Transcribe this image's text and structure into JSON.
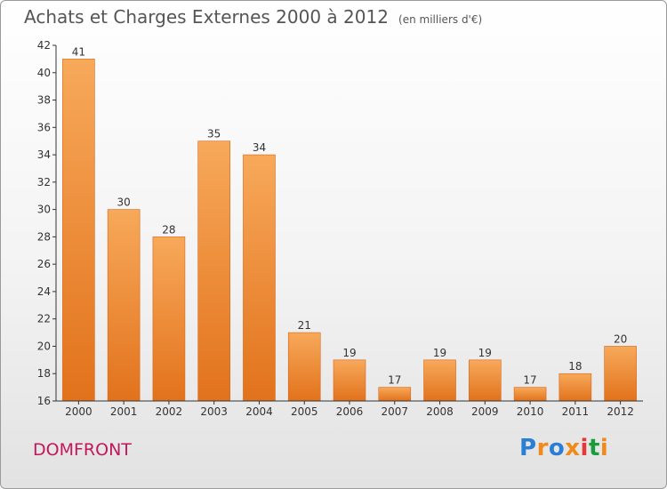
{
  "title": "Achats et Charges Externes 2000 à 2012",
  "unit": "(en milliers d'€)",
  "commune": "DOMFRONT",
  "logo": "Proxiti",
  "colors": {
    "bar_top": "#f7a95a",
    "bar_bottom": "#e2721c",
    "axis": "#333333",
    "commune": "#c2185b",
    "logo": [
      "#2a7fd4",
      "#f08a1c",
      "#2a7fd4",
      "#f08a1c",
      "#e53935",
      "#1a9b3c",
      "#f08a1c"
    ]
  },
  "chart_data": {
    "type": "bar",
    "title": "Achats et Charges Externes 2000 à 2012",
    "subtitle": "(en milliers d'€)",
    "categories": [
      "2000",
      "2001",
      "2002",
      "2003",
      "2004",
      "2005",
      "2006",
      "2007",
      "2008",
      "2009",
      "2010",
      "2011",
      "2012"
    ],
    "values": [
      41,
      30,
      28,
      35,
      34,
      21,
      19,
      17,
      19,
      19,
      17,
      18,
      20
    ],
    "ylim": [
      16,
      42
    ],
    "yticks": [
      16,
      18,
      20,
      22,
      24,
      26,
      28,
      30,
      32,
      34,
      36,
      38,
      40,
      42
    ],
    "grid": false,
    "legend": "none"
  }
}
